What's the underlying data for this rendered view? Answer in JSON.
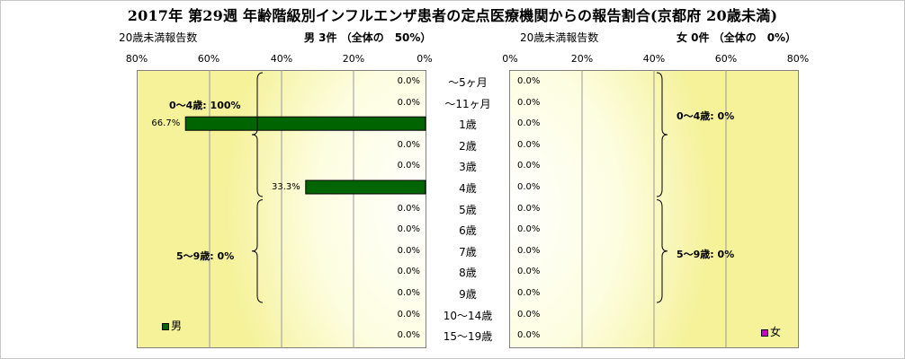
{
  "title": "2017年 第29週 年齢階級別インフルエンザ患者の定点医療機関からの報告割合(京都府 20歳未満)",
  "male": {
    "count_caption": "20歳未満報告数",
    "summary": "男 3件 （全体の　50%）",
    "legend": "男",
    "color": "#006400",
    "ticks": [
      "80%",
      "60%",
      "40%",
      "20%",
      "0%"
    ],
    "group_labels": [
      "0～4歳: 100%",
      "5～9歳: 0%"
    ]
  },
  "female": {
    "count_caption": "20歳未満報告数",
    "summary": "女 0件 （全体の　0%）",
    "legend": "女",
    "color": "#cc00cc",
    "ticks": [
      "0%",
      "20%",
      "40%",
      "60%",
      "80%"
    ],
    "group_labels": [
      "0～4歳: 0%",
      "5～9歳: 0%"
    ]
  },
  "chart_data": {
    "type": "bar",
    "orientation": "horizontal-pyramid",
    "title": "2017年 第29週 年齢階級別インフルエンザ患者の定点医療機関からの報告割合(京都府 20歳未満)",
    "categories": [
      "～5ヶ月",
      "～11ヶ月",
      "1歳",
      "2歳",
      "3歳",
      "4歳",
      "5歳",
      "6歳",
      "7歳",
      "8歳",
      "9歳",
      "10～14歳",
      "15～19歳"
    ],
    "series": [
      {
        "name": "男",
        "values": [
          0,
          0,
          66.7,
          0,
          0,
          33.3,
          0,
          0,
          0,
          0,
          0,
          0,
          0
        ],
        "labels": [
          "0.0%",
          "0.0%",
          "66.7%",
          "0.0%",
          "0.0%",
          "33.3%",
          "0.0%",
          "0.0%",
          "0.0%",
          "0.0%",
          "0.0%",
          "0.0%",
          "0.0%"
        ]
      },
      {
        "name": "女",
        "values": [
          0,
          0,
          0,
          0,
          0,
          0,
          0,
          0,
          0,
          0,
          0,
          0,
          0
        ],
        "labels": [
          "0.0%",
          "0.0%",
          "0.0%",
          "0.0%",
          "0.0%",
          "0.0%",
          "0.0%",
          "0.0%",
          "0.0%",
          "0.0%",
          "0.0%",
          "0.0%",
          "0.0%"
        ]
      }
    ],
    "xlim": [
      0,
      80
    ],
    "grid": true
  }
}
